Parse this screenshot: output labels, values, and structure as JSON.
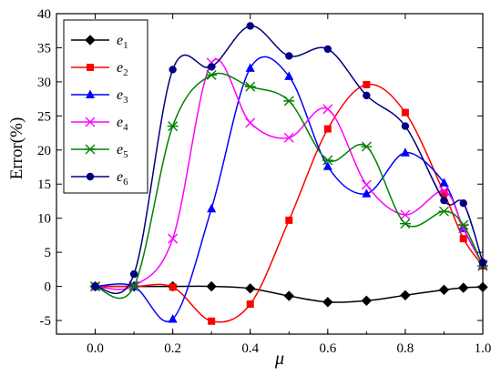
{
  "chart_data": {
    "type": "line",
    "title": "",
    "xlabel": "μ",
    "ylabel": "Error(%)",
    "xlim": [
      -0.1,
      1.0
    ],
    "ylim": [
      -7,
      40
    ],
    "xticks": [
      0.0,
      0.2,
      0.4,
      0.6,
      0.8,
      1.0
    ],
    "xtick_labels": [
      "0.0",
      "0.2",
      "0.4",
      "0.6",
      "0.8",
      "1.0"
    ],
    "yticks": [
      -5,
      0,
      5,
      10,
      15,
      20,
      25,
      30,
      35,
      40
    ],
    "ytick_labels": [
      "-5",
      "0",
      "5",
      "10",
      "15",
      "20",
      "25",
      "30",
      "35",
      "40"
    ],
    "legend_position": "top-left",
    "grid": false,
    "series": [
      {
        "name": "e1",
        "legend_base": "e",
        "legend_sub": "1",
        "color": "#000000",
        "marker": "diamond",
        "x": [
          0.0,
          0.1,
          0.2,
          0.3,
          0.4,
          0.5,
          0.6,
          0.7,
          0.8,
          0.9,
          0.95,
          1.0
        ],
        "y": [
          0.0,
          0.0,
          0.0,
          0.0,
          -0.3,
          -1.4,
          -2.3,
          -2.1,
          -1.3,
          -0.5,
          -0.2,
          -0.1
        ]
      },
      {
        "name": "e2",
        "legend_base": "e",
        "legend_sub": "2",
        "color": "#ff0000",
        "marker": "square",
        "x": [
          0.0,
          0.1,
          0.2,
          0.3,
          0.4,
          0.5,
          0.6,
          0.7,
          0.8,
          0.9,
          0.95,
          1.0
        ],
        "y": [
          0.0,
          0.0,
          -0.1,
          -5.1,
          -2.6,
          9.7,
          23.1,
          29.6,
          25.5,
          13.7,
          7.0,
          3.0
        ]
      },
      {
        "name": "e3",
        "legend_base": "e",
        "legend_sub": "3",
        "color": "#0000ff",
        "marker": "triangle",
        "x": [
          0.0,
          0.1,
          0.2,
          0.3,
          0.4,
          0.5,
          0.6,
          0.7,
          0.8,
          0.9,
          0.95,
          1.0
        ],
        "y": [
          0.0,
          0.0,
          -4.8,
          11.4,
          32.0,
          30.8,
          17.6,
          13.6,
          19.6,
          15.2,
          8.5,
          3.2
        ]
      },
      {
        "name": "e4",
        "legend_base": "e",
        "legend_sub": "4",
        "color": "#ff00ff",
        "marker": "x",
        "x": [
          0.0,
          0.1,
          0.2,
          0.3,
          0.4,
          0.5,
          0.6,
          0.7,
          0.8,
          0.9,
          0.95,
          1.0
        ],
        "y": [
          0.0,
          0.1,
          7.0,
          32.8,
          24.0,
          21.8,
          26.0,
          14.9,
          10.5,
          14.0,
          8.5,
          3.2
        ]
      },
      {
        "name": "e5",
        "legend_base": "e",
        "legend_sub": "5",
        "color": "#008000",
        "marker": "asterisk",
        "x": [
          0.0,
          0.1,
          0.2,
          0.3,
          0.4,
          0.5,
          0.6,
          0.7,
          0.8,
          0.9,
          0.95,
          1.0
        ],
        "y": [
          0.0,
          0.0,
          23.5,
          31.0,
          29.3,
          27.2,
          18.5,
          20.5,
          9.2,
          11.0,
          9.0,
          3.0
        ]
      },
      {
        "name": "e6",
        "legend_base": "e",
        "legend_sub": "6",
        "color": "#000080",
        "marker": "circle",
        "x": [
          0.0,
          0.1,
          0.2,
          0.3,
          0.4,
          0.5,
          0.6,
          0.7,
          0.8,
          0.9,
          0.95,
          1.0
        ],
        "y": [
          0.0,
          1.8,
          31.8,
          32.2,
          38.2,
          33.8,
          34.8,
          28.0,
          23.5,
          12.6,
          12.2,
          3.5
        ]
      }
    ]
  }
}
